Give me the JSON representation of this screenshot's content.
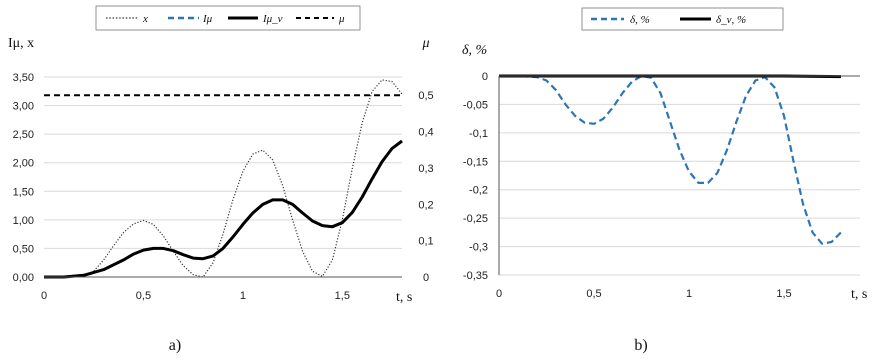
{
  "panel_labels": {
    "a": "a)",
    "b": "b)"
  },
  "chart_data": [
    {
      "type": "line",
      "panel": "a)",
      "xlabel": "t, s",
      "ylabel": "Iμ, x",
      "y2label": "μ",
      "xlim": [
        0,
        1.8
      ],
      "ylim": [
        0,
        3.5
      ],
      "y2lim": [
        0,
        0.55
      ],
      "xticks": [
        "0",
        "0,5",
        "1",
        "1,5"
      ],
      "xtick_values": [
        0,
        0.5,
        1,
        1.5
      ],
      "yticks": [
        "0,00",
        "0,50",
        "1,00",
        "1,50",
        "2,00",
        "2,50",
        "3,00",
        "3,50"
      ],
      "ytick_values": [
        0,
        0.5,
        1,
        1.5,
        2,
        2.5,
        3,
        3.5
      ],
      "y2ticks": [
        "0",
        "0,1",
        "0,2",
        "0,3",
        "0,4",
        "0,5"
      ],
      "y2tick_values": [
        0,
        0.1,
        0.2,
        0.3,
        0.4,
        0.5
      ],
      "grid": "horizontal",
      "legend_position": "top",
      "series": [
        {
          "name": "x",
          "style": "dotted",
          "color": "#333333",
          "width": 1.2,
          "axis": "left",
          "x": [
            0,
            0.1,
            0.2,
            0.25,
            0.3,
            0.35,
            0.4,
            0.45,
            0.5,
            0.55,
            0.6,
            0.65,
            0.7,
            0.75,
            0.8,
            0.85,
            0.9,
            0.95,
            1.0,
            1.05,
            1.1,
            1.15,
            1.2,
            1.25,
            1.3,
            1.35,
            1.4,
            1.45,
            1.5,
            1.55,
            1.6,
            1.65,
            1.7,
            1.75,
            1.8
          ],
          "y": [
            0,
            0,
            0.02,
            0.1,
            0.3,
            0.55,
            0.78,
            0.93,
            0.99,
            0.92,
            0.72,
            0.45,
            0.2,
            0.04,
            0,
            0.25,
            0.75,
            1.35,
            1.85,
            2.15,
            2.22,
            2.05,
            1.6,
            1.0,
            0.45,
            0.1,
            0.01,
            0.3,
            1.0,
            1.9,
            2.7,
            3.25,
            3.45,
            3.42,
            3.2
          ]
        },
        {
          "name": "Iμ",
          "style": "dashed",
          "color": "#2E75B6",
          "width": 2,
          "axis": "left",
          "x": [
            0,
            0.1,
            0.2,
            0.3,
            0.4,
            0.45,
            0.5,
            0.55,
            0.6,
            0.65,
            0.7,
            0.75,
            0.8,
            0.85,
            0.9,
            0.95,
            1.0,
            1.05,
            1.1,
            1.15,
            1.2,
            1.25,
            1.3,
            1.35,
            1.4,
            1.45,
            1.5,
            1.55,
            1.6,
            1.65,
            1.7,
            1.75,
            1.8
          ],
          "y": [
            0,
            0,
            0.03,
            0.13,
            0.3,
            0.4,
            0.47,
            0.5,
            0.5,
            0.46,
            0.39,
            0.33,
            0.32,
            0.37,
            0.5,
            0.7,
            0.92,
            1.12,
            1.27,
            1.35,
            1.35,
            1.27,
            1.12,
            0.98,
            0.9,
            0.88,
            0.95,
            1.13,
            1.4,
            1.72,
            2.02,
            2.25,
            2.38
          ]
        },
        {
          "name": "Iμ_ν",
          "style": "solid",
          "color": "#000000",
          "width": 3,
          "axis": "left",
          "x": [
            0,
            0.1,
            0.2,
            0.3,
            0.4,
            0.45,
            0.5,
            0.55,
            0.6,
            0.65,
            0.7,
            0.75,
            0.8,
            0.85,
            0.9,
            0.95,
            1.0,
            1.05,
            1.1,
            1.15,
            1.2,
            1.25,
            1.3,
            1.35,
            1.4,
            1.45,
            1.5,
            1.55,
            1.6,
            1.65,
            1.7,
            1.75,
            1.8
          ],
          "y": [
            0,
            0,
            0.03,
            0.13,
            0.3,
            0.4,
            0.47,
            0.5,
            0.5,
            0.46,
            0.39,
            0.33,
            0.32,
            0.37,
            0.5,
            0.7,
            0.92,
            1.12,
            1.27,
            1.35,
            1.35,
            1.27,
            1.12,
            0.98,
            0.9,
            0.88,
            0.95,
            1.13,
            1.4,
            1.72,
            2.02,
            2.25,
            2.38
          ]
        },
        {
          "name": "μ",
          "style": "dashed",
          "color": "#000000",
          "width": 2,
          "axis": "right",
          "x": [
            0,
            1.8
          ],
          "y": [
            0.5,
            0.5
          ]
        }
      ]
    },
    {
      "type": "line",
      "panel": "b)",
      "xlabel": "t, s",
      "ylabel": "δ, %",
      "xlim": [
        0,
        1.9
      ],
      "ylim": [
        -0.35,
        0
      ],
      "xticks": [
        "0",
        "0,5",
        "1",
        "1,5"
      ],
      "xtick_values": [
        0,
        0.5,
        1,
        1.5
      ],
      "yticks": [
        "0",
        "-0,05",
        "-0,1",
        "-0,15",
        "-0,2",
        "-0,25",
        "-0,3",
        "-0,35"
      ],
      "ytick_values": [
        0,
        -0.05,
        -0.1,
        -0.15,
        -0.2,
        -0.25,
        -0.3,
        -0.35
      ],
      "grid": "horizontal",
      "legend_position": "top",
      "series": [
        {
          "name": "δ, %",
          "style": "dashed",
          "color": "#2E75B6",
          "width": 2.2,
          "x": [
            0,
            0.1,
            0.2,
            0.25,
            0.3,
            0.35,
            0.4,
            0.45,
            0.5,
            0.55,
            0.6,
            0.65,
            0.7,
            0.75,
            0.8,
            0.85,
            0.9,
            0.95,
            1.0,
            1.05,
            1.1,
            1.15,
            1.2,
            1.25,
            1.3,
            1.35,
            1.4,
            1.45,
            1.5,
            1.55,
            1.6,
            1.65,
            1.7,
            1.75,
            1.8
          ],
          "y": [
            0,
            0,
            -0.002,
            -0.008,
            -0.025,
            -0.05,
            -0.07,
            -0.082,
            -0.084,
            -0.075,
            -0.055,
            -0.03,
            -0.01,
            0,
            -0.003,
            -0.03,
            -0.08,
            -0.13,
            -0.168,
            -0.188,
            -0.188,
            -0.17,
            -0.13,
            -0.08,
            -0.035,
            -0.008,
            -0.002,
            -0.02,
            -0.07,
            -0.15,
            -0.225,
            -0.275,
            -0.295,
            -0.292,
            -0.275
          ]
        },
        {
          "name": "δ_ν, %",
          "style": "solid",
          "color": "#000000",
          "width": 3,
          "x": [
            0,
            0.5,
            1.0,
            1.5,
            1.8
          ],
          "y": [
            0,
            0,
            0,
            0,
            -0.001
          ]
        }
      ]
    }
  ]
}
